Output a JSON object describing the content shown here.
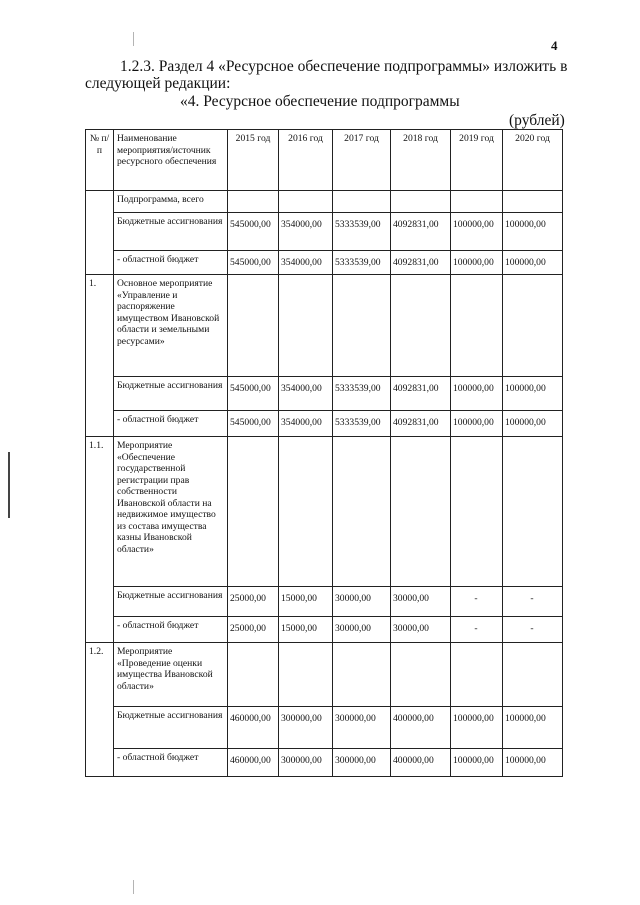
{
  "page_number": "4",
  "intro_line1": "1.2.3. Раздел 4 «Ресурсное обеспечение подпрограммы» изложить в",
  "intro_line2": "следующей редакции:",
  "subtitle": "«4. Ресурсное обеспечение подпрограммы",
  "units": "(рублей)",
  "table": {
    "headers": [
      "№ п/п",
      "Наименование мероприятия/источник ресурсного обеспечения",
      "2015 год",
      "2016 год",
      "2017 год",
      "2018 год",
      "2019 год",
      "2020 год"
    ],
    "rows": [
      {
        "no": "",
        "name": "Подпрограмма, всего",
        "values": [
          "",
          "",
          "",
          "",
          "",
          ""
        ]
      },
      {
        "no": "",
        "name": "Бюджетные ассигнования",
        "values": [
          "545000,00",
          "354000,00",
          "5333539,00",
          "4092831,00",
          "100000,00",
          "100000,00"
        ]
      },
      {
        "no": "",
        "name": "- областной бюджет",
        "values": [
          "545000,00",
          "354000,00",
          "5333539,00",
          "4092831,00",
          "100000,00",
          "100000,00"
        ]
      },
      {
        "no": "1.",
        "name": "Основное мероприятие «Управление и распоряжение имуществом Ивановской области и земельными ресурсами»",
        "values": [
          "",
          "",
          "",
          "",
          "",
          ""
        ]
      },
      {
        "no": "",
        "name": "Бюджетные ассигнования",
        "values": [
          "545000,00",
          "354000,00",
          "5333539,00",
          "4092831,00",
          "100000,00",
          "100000,00"
        ]
      },
      {
        "no": "",
        "name": "- областной бюджет",
        "values": [
          "545000,00",
          "354000,00",
          "5333539,00",
          "4092831,00",
          "100000,00",
          "100000,00"
        ]
      },
      {
        "no": "1.1.",
        "name": "Мероприятие «Обеспечение государственной регистрации прав собственности Ивановской области на недвижимое имущество из состава имущества казны Ивановской области»",
        "values": [
          "",
          "",
          "",
          "",
          "",
          ""
        ]
      },
      {
        "no": "",
        "name": "Бюджетные ассигнования",
        "values": [
          "25000,00",
          "15000,00",
          "30000,00",
          "30000,00",
          "-",
          "-"
        ]
      },
      {
        "no": "",
        "name": "- областной бюджет",
        "values": [
          "25000,00",
          "15000,00",
          "30000,00",
          "30000,00",
          "-",
          "-"
        ]
      },
      {
        "no": "1.2.",
        "name": "Мероприятие «Проведение оценки имущества Ивановской области»",
        "values": [
          "",
          "",
          "",
          "",
          "",
          ""
        ]
      },
      {
        "no": "",
        "name": "Бюджетные ассигнования",
        "values": [
          "460000,00",
          "300000,00",
          "300000,00",
          "400000,00",
          "100000,00",
          "100000,00"
        ]
      },
      {
        "no": "",
        "name": "- областной бюджет",
        "values": [
          "460000,00",
          "300000,00",
          "300000,00",
          "400000,00",
          "100000,00",
          "100000,00"
        ]
      }
    ]
  }
}
